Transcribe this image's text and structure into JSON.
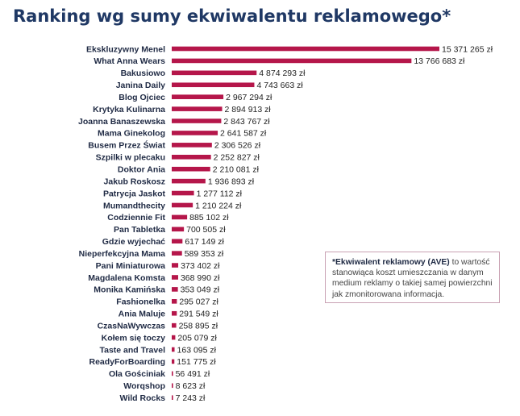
{
  "chart_data": {
    "type": "bar",
    "orientation": "horizontal",
    "title": "Ranking wg sumy ekwiwalentu reklamowego*",
    "bar_color": "#b5164a",
    "title_color": "#1f3864",
    "categories": [
      "Ekskluzywny Menel",
      "What Anna Wears",
      "Bakusiowo",
      "Janina Daily",
      "Blog Ojciec",
      "Krytyka Kulinarna",
      "Joanna Banaszewska",
      "Mama Ginekolog",
      "Busem Przez Świat",
      "Szpilki w plecaku",
      "Doktor Ania",
      "Jakub Roskosz",
      "Patrycja Jaskot",
      "Mumandthecity",
      "Codziennie Fit",
      "Pan Tabletka",
      "Gdzie wyjechać",
      "Nieperfekcyjna Mama",
      "Pani Miniaturowa",
      "Magdalena Komsta",
      "Monika Kamińska",
      "Fashionelka",
      "Ania Maluje",
      "CzasNaWywczas",
      "Kołem się toczy",
      "Taste and Travel",
      "ReadyForBoarding",
      "Ola Gościniak",
      "Worqshop",
      "Wild Rocks"
    ],
    "values": [
      15371265,
      13766683,
      4874293,
      4743663,
      2967294,
      2894913,
      2843767,
      2641587,
      2306526,
      2252827,
      2210081,
      1936893,
      1277112,
      1210224,
      885102,
      700505,
      617149,
      589353,
      373402,
      368990,
      353049,
      295027,
      291549,
      258895,
      205079,
      163095,
      151775,
      56491,
      8623,
      7243
    ],
    "value_labels": [
      "15 371 265 zł",
      "13 766 683 zł",
      "4 874 293 zł",
      "4 743 663 zł",
      "2 967 294 zł",
      "2 894 913 zł",
      "2 843 767 zł",
      "2 641 587 zł",
      "2 306 526 zł",
      "2 252 827 zł",
      "2 210 081 zł",
      "1 936 893 zł",
      "1 277 112 zł",
      "1 210 224 zł",
      "885 102 zł",
      "700 505 zł",
      "617 149 zł",
      "589 353 zł",
      "373 402 zł",
      "368 990 zł",
      "353 049 zł",
      "295 027 zł",
      "291 549 zł",
      "258 895 zł",
      "205 079 zł",
      "163 095 zł",
      "151 775 zł",
      "56 491 zł",
      "8 623 zł",
      "7 243 zł"
    ],
    "grid": false,
    "legend": "none"
  },
  "note": {
    "bold": "*Ekwiwalent reklamowy (AVE)",
    "text": " to wartość stanowiąca koszt umieszczania w danym medium reklamy o takiej samej powierzchni jak zmonitorowana informacja."
  }
}
